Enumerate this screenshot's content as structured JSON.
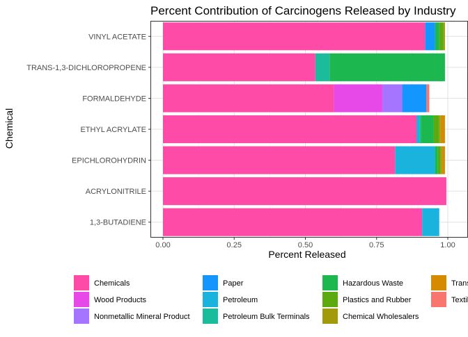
{
  "chart_data": {
    "type": "bar",
    "orientation": "horizontal",
    "stacked": true,
    "title": "Percent Contribution of Carcinogens Released by Industry",
    "xlabel": "Percent Released",
    "ylabel": "Chemical",
    "xlim": [
      0,
      1
    ],
    "x_ticks": [
      "0.00",
      "0.25",
      "0.50",
      "0.75",
      "1.00"
    ],
    "x_tick_values": [
      0,
      0.25,
      0.5,
      0.75,
      1.0
    ],
    "grid": true,
    "legend_position": "bottom",
    "categories": [
      "VINYL ACETATE",
      "TRANS-1,3-DICHLOROPROPENE",
      "FORMALDEHYDE",
      "ETHYL ACRYLATE",
      "EPICHLOROHYDRIN",
      "ACRYLONITRILE",
      "1,3-BUTADIENE"
    ],
    "series": [
      {
        "name": "Chemicals",
        "color": "#FF4BA8",
        "values": [
          0.92,
          0.535,
          0.6,
          0.89,
          0.815,
          0.995,
          0.91
        ]
      },
      {
        "name": "Wood Products",
        "color": "#E649E8",
        "values": [
          0,
          0,
          0.17,
          0,
          0,
          0,
          0
        ]
      },
      {
        "name": "Nonmetallic Mineral Product",
        "color": "#A675FF",
        "values": [
          0,
          0,
          0.07,
          0,
          0,
          0,
          0
        ]
      },
      {
        "name": "Paper",
        "color": "#1496FF",
        "values": [
          0.035,
          0,
          0.085,
          0,
          0,
          0,
          0
        ]
      },
      {
        "name": "Petroleum",
        "color": "#19B3DE",
        "values": [
          0,
          0,
          0,
          0.01,
          0.14,
          0,
          0.06
        ]
      },
      {
        "name": "Petroleum Bulk Terminals",
        "color": "#1ABC9C",
        "values": [
          0,
          0.05,
          0,
          0.005,
          0,
          0,
          0
        ]
      },
      {
        "name": "Hazardous Waste",
        "color": "#1DB74F",
        "values": [
          0.015,
          0.405,
          0,
          0.045,
          0.01,
          0,
          0
        ]
      },
      {
        "name": "Plastics and Rubber",
        "color": "#5CAA10",
        "values": [
          0.015,
          0,
          0,
          0.02,
          0.01,
          0,
          0
        ]
      },
      {
        "name": "Chemical Wholesalers",
        "color": "#A39A0B",
        "values": [
          0.005,
          0,
          0,
          0.005,
          0.005,
          0,
          0
        ]
      },
      {
        "name": "Transportation Equipment",
        "color": "#D58A00",
        "values": [
          0,
          0,
          0,
          0.015,
          0.01,
          0,
          0
        ]
      },
      {
        "name": "Textiles",
        "color": "#F8766D",
        "values": [
          0,
          0,
          0.01,
          0,
          0,
          0,
          0
        ]
      }
    ]
  }
}
